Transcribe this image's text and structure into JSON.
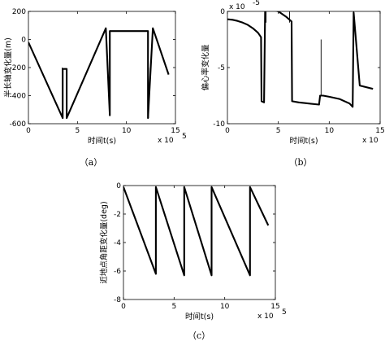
{
  "chart_data": [
    {
      "id": "a",
      "type": "line",
      "caption": "（a）",
      "xlabel": "时间t(s)",
      "ylabel": "半长轴变化量(m)",
      "x_multiplier": "x 10",
      "x_multiplier_exp": "5",
      "y_multiplier": "",
      "y_multiplier_exp": "",
      "xlim": [
        0,
        15
      ],
      "ylim": [
        -600,
        200
      ],
      "xticks": [
        0,
        5,
        10,
        15
      ],
      "yticks": [
        -600,
        -400,
        -200,
        0,
        200
      ],
      "series": [
        {
          "x": [
            0,
            3.5,
            3.5,
            3.9,
            3.9,
            7.9,
            7.9,
            8.3,
            8.3,
            12.2,
            12.2,
            12.7,
            12.7,
            14.3
          ],
          "y": [
            -20,
            -560,
            -210,
            -210,
            -560,
            80,
            80,
            -540,
            60,
            60,
            -560,
            80,
            80,
            -250
          ]
        }
      ],
      "spikes": [
        {
          "x": 3.45,
          "y_from": -560,
          "y_to": -200
        },
        {
          "x": 12.25,
          "y_from": -560,
          "y_to": -200
        }
      ]
    },
    {
      "id": "b",
      "type": "line",
      "caption": "（b）",
      "xlabel": "时间t(s)",
      "ylabel": "偏心率变化量",
      "x_multiplier": "x 10",
      "x_multiplier_exp": "5",
      "y_multiplier": "x 10",
      "y_multiplier_exp": "-5",
      "xlim": [
        0,
        15
      ],
      "ylim": [
        -10,
        0
      ],
      "xticks": [
        0,
        5,
        10,
        15
      ],
      "yticks": [
        -10,
        -5,
        0
      ],
      "series": [
        {
          "x": [
            0,
            0.5,
            1,
            1.5,
            2,
            2.5,
            3,
            3.3,
            3.35,
            3.6,
            3.7,
            4.2,
            5,
            5.8,
            6.3,
            6.35,
            7,
            8,
            9,
            9.1,
            9.4,
            10,
            11,
            12,
            12.3,
            12.4,
            13,
            14.3
          ],
          "y": [
            -0.7,
            -0.75,
            -0.85,
            -1,
            -1.2,
            -1.5,
            -1.9,
            -2.3,
            -8.0,
            -8.1,
            0.1,
            0.2,
            0.0,
            -0.5,
            -0.9,
            -8.0,
            -8.1,
            -8.2,
            -8.3,
            -7.5,
            -7.5,
            -7.6,
            -7.8,
            -8.2,
            -8.5,
            -0.1,
            -6.6,
            -6.9
          ]
        }
      ],
      "spikes": [
        {
          "x": 3.8,
          "y_from": -1,
          "y_to": 0.2
        },
        {
          "x": 6.1,
          "y_from": -1,
          "y_to": 0.2
        },
        {
          "x": 9.2,
          "y_from": -7.5,
          "y_to": -2.5
        },
        {
          "x": 12.4,
          "y_from": -1,
          "y_to": 0.2
        }
      ]
    },
    {
      "id": "c",
      "type": "line",
      "caption": "（c）",
      "xlabel": "时间t(s)",
      "ylabel": "近地点角距变化量(deg)",
      "x_multiplier": "x 10",
      "x_multiplier_exp": "5",
      "y_multiplier": "",
      "y_multiplier_exp": "",
      "xlim": [
        0,
        15
      ],
      "ylim": [
        -8,
        0
      ],
      "xticks": [
        0,
        5,
        10,
        15
      ],
      "yticks": [
        -8,
        -6,
        -4,
        -2,
        0
      ],
      "series": [
        {
          "x": [
            0,
            3.2,
            3.2,
            6.0,
            6.0,
            8.7,
            8.7,
            12.5,
            12.5,
            14.3
          ],
          "y": [
            -0.1,
            -6.2,
            -0.1,
            -6.3,
            -0.1,
            -6.3,
            -0.1,
            -6.3,
            -0.1,
            -2.8
          ]
        }
      ],
      "spikes": []
    }
  ]
}
